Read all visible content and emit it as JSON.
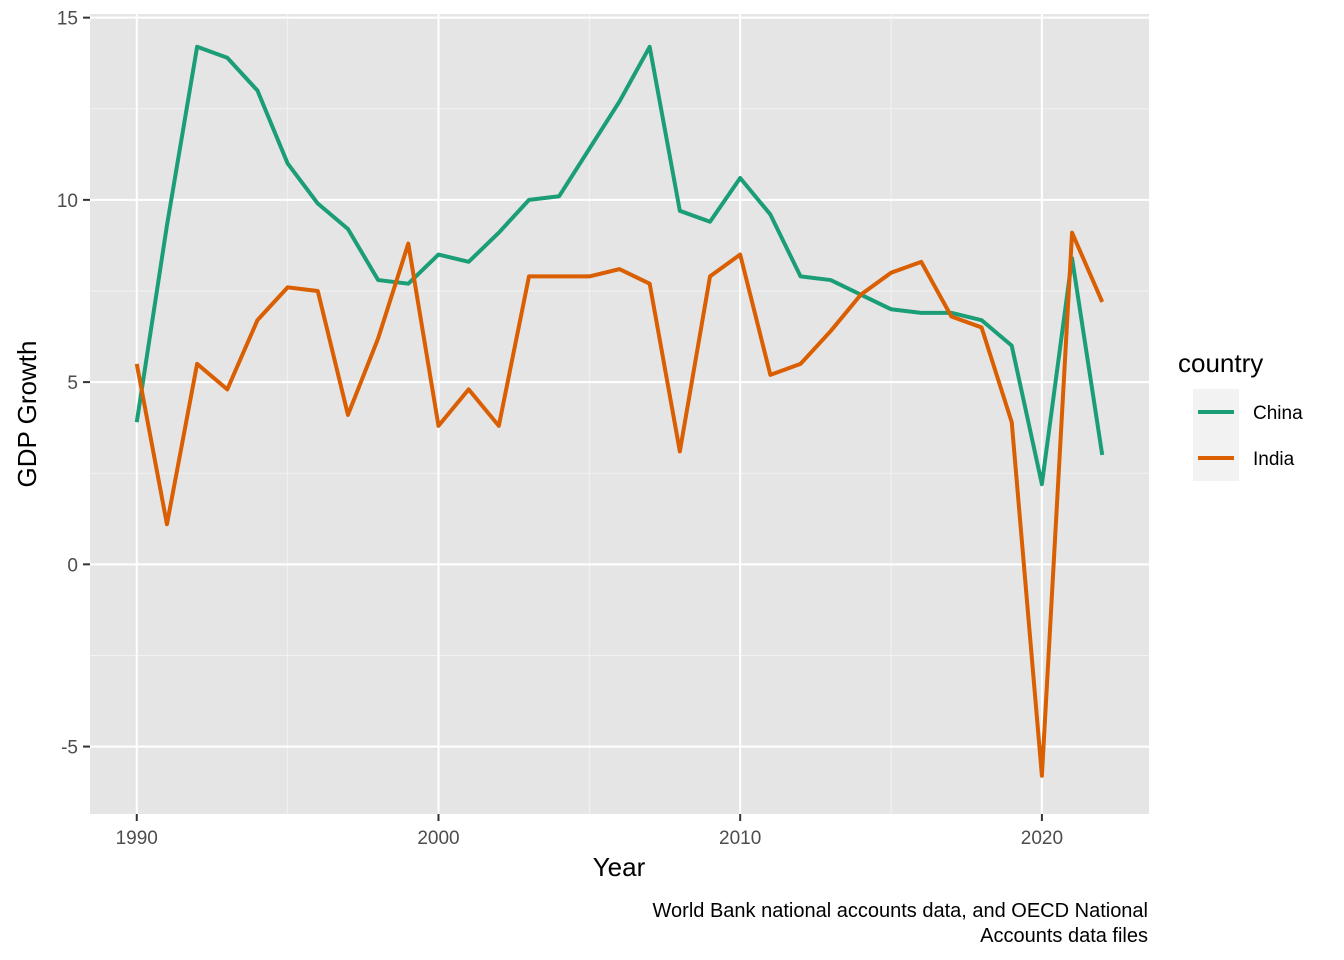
{
  "chart_data": {
    "type": "line",
    "title": "",
    "xlabel": "Year",
    "ylabel": "GDP Growth",
    "xlim": [
      1988.45,
      2023.55
    ],
    "ylim": [
      -6.85,
      15.1
    ],
    "xticks": [
      1990,
      2000,
      2010,
      2020
    ],
    "xtick_labels": [
      "1990",
      "2000",
      "2010",
      "2020"
    ],
    "yticks": [
      -5,
      0,
      5,
      10,
      15
    ],
    "ytick_labels": [
      "-5",
      "0",
      "5",
      "10",
      "15"
    ],
    "grid": true,
    "legend": {
      "title": "country",
      "position": "right"
    },
    "caption": [
      "World Bank national accounts data, and OECD National",
      "Accounts data files"
    ],
    "series": [
      {
        "name": "China",
        "color": "#1b9e77",
        "x": [
          1990,
          1991,
          1992,
          1993,
          1994,
          1995,
          1996,
          1997,
          1998,
          1999,
          2000,
          2001,
          2002,
          2003,
          2004,
          2005,
          2006,
          2007,
          2008,
          2009,
          2010,
          2011,
          2012,
          2013,
          2014,
          2015,
          2016,
          2017,
          2018,
          2019,
          2020,
          2021,
          2022
        ],
        "values": [
          3.9,
          9.3,
          14.2,
          13.9,
          13.0,
          11.0,
          9.9,
          9.2,
          7.8,
          7.7,
          8.5,
          8.3,
          9.1,
          10.0,
          10.1,
          11.4,
          12.7,
          14.2,
          9.7,
          9.4,
          10.6,
          9.6,
          7.9,
          7.8,
          7.4,
          7.0,
          6.9,
          6.9,
          6.7,
          6.0,
          2.2,
          8.4,
          3.0
        ]
      },
      {
        "name": "India",
        "color": "#d95f02",
        "x": [
          1990,
          1991,
          1992,
          1993,
          1994,
          1995,
          1996,
          1997,
          1998,
          1999,
          2000,
          2001,
          2002,
          2003,
          2004,
          2005,
          2006,
          2007,
          2008,
          2009,
          2010,
          2011,
          2012,
          2013,
          2014,
          2015,
          2016,
          2017,
          2018,
          2019,
          2020,
          2021,
          2022
        ],
        "values": [
          5.5,
          1.1,
          5.5,
          4.8,
          6.7,
          7.6,
          7.5,
          4.1,
          6.2,
          8.8,
          3.8,
          4.8,
          3.8,
          7.9,
          7.9,
          7.9,
          8.1,
          7.7,
          3.1,
          7.9,
          8.5,
          5.2,
          5.5,
          6.4,
          7.4,
          8.0,
          8.3,
          6.8,
          6.5,
          3.9,
          -5.8,
          9.1,
          7.2
        ]
      }
    ]
  }
}
